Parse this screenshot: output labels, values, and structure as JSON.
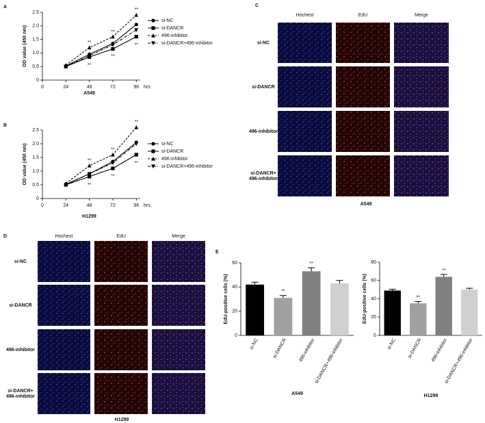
{
  "chart_data": [
    {
      "type": "line",
      "ylabel": "OD value (450 nm)",
      "xlabel": "A549",
      "x_unit": "hrs",
      "x": [
        24,
        48,
        72,
        96
      ],
      "xlim": [
        0,
        100
      ],
      "xticks": [
        0,
        24,
        48,
        72,
        96
      ],
      "ylim": [
        0,
        2.5
      ],
      "yticks": [
        0,
        0.5,
        {
          "value": 1,
          "label": "1.0"
        },
        1.5,
        {
          "value": 2,
          "label": "2.0"
        },
        2.5
      ],
      "series": [
        {
          "name": "si-NC",
          "color": "#000000",
          "marker": "circle",
          "dash": "solid",
          "values": [
            0.52,
            0.95,
            1.35,
            2.05
          ]
        },
        {
          "name": "si-DANCR",
          "color": "#000000",
          "marker": "square",
          "dash": "solid",
          "values": [
            0.5,
            0.85,
            1.15,
            1.6
          ]
        },
        {
          "name": "496-inhibitor",
          "color": "#000000",
          "marker": "triangle-up",
          "dash": "dashed",
          "values": [
            0.55,
            1.2,
            1.6,
            2.4
          ]
        },
        {
          "name": "si-DANCR+496-inhibitor",
          "color": "#000000",
          "marker": "triangle-down",
          "dash": "dashdot",
          "values": [
            0.5,
            0.9,
            1.3,
            1.85
          ]
        }
      ],
      "annotations": [
        {
          "text": "**",
          "x": 48,
          "y": 1.38
        },
        {
          "text": "**",
          "x": 48,
          "y": 0.55
        },
        {
          "text": "**",
          "x": 72,
          "y": 1.78
        },
        {
          "text": "**",
          "x": 72,
          "y": 0.88
        },
        {
          "text": "**",
          "x": 96,
          "y": 2.6
        },
        {
          "text": "**",
          "x": 96,
          "y": 1.3
        }
      ]
    },
    {
      "type": "line",
      "ylabel": "OD value (450 nm)",
      "xlabel": "H1299",
      "x_unit": "hrs",
      "x": [
        24,
        48,
        72,
        96
      ],
      "xlim": [
        0,
        100
      ],
      "xticks": [
        0,
        24,
        48,
        72,
        96
      ],
      "ylim": [
        0,
        2.5
      ],
      "yticks": [
        0,
        0.5,
        {
          "value": 1,
          "label": "1.0"
        },
        1.5,
        {
          "value": 2,
          "label": "2.0"
        },
        2.5
      ],
      "series": [
        {
          "name": "si-NC",
          "color": "#000000",
          "marker": "circle",
          "dash": "solid",
          "values": [
            0.52,
            0.9,
            1.35,
            2.05
          ]
        },
        {
          "name": "si-DANCR",
          "color": "#000000",
          "marker": "square",
          "dash": "solid",
          "values": [
            0.5,
            0.8,
            1.1,
            1.6
          ]
        },
        {
          "name": "496-inhibitor",
          "color": "#000000",
          "marker": "triangle-up",
          "dash": "dashed",
          "values": [
            0.55,
            1.2,
            1.6,
            2.6
          ]
        },
        {
          "name": "si-DANCR+496-inhibitor",
          "color": "#000000",
          "marker": "triangle-down",
          "dash": "dashdot",
          "values": [
            0.5,
            0.9,
            1.3,
            2.0
          ]
        }
      ],
      "annotations": [
        {
          "text": "**",
          "x": 48,
          "y": 1.38
        },
        {
          "text": "**",
          "x": 48,
          "y": 0.5
        },
        {
          "text": "**",
          "x": 72,
          "y": 1.78
        },
        {
          "text": "**",
          "x": 72,
          "y": 0.82
        },
        {
          "text": "**",
          "x": 96,
          "y": 2.8
        },
        {
          "text": "**",
          "x": 96,
          "y": 1.3
        }
      ]
    },
    {
      "type": "bar",
      "ylabel": "EdU-positive cells (%)",
      "xlabel": "A549",
      "categories": [
        "si-NC",
        "si-DANCR",
        "496-inhibitor",
        "si-DANCR+496-inhibitor"
      ],
      "values": [
        42,
        31,
        53,
        43
      ],
      "errors": [
        2,
        2,
        3,
        2.5
      ],
      "colors": [
        "#000000",
        "#a0a0a0",
        "#808080",
        "#d0d0d0"
      ],
      "ylim": [
        0,
        60
      ],
      "yticks": [
        0,
        20,
        40,
        60
      ],
      "annotations": [
        {
          "text": "**",
          "category": "si-DANCR"
        },
        {
          "text": "**",
          "category": "496-inhibitor"
        }
      ]
    },
    {
      "type": "bar",
      "ylabel": "EdU-positive cells (%)",
      "xlabel": "H1299",
      "categories": [
        "si-NC",
        "si-DANCR",
        "496-inhibitor",
        "si-DANCR+496-inhibitor"
      ],
      "values": [
        49,
        35,
        64,
        50
      ],
      "errors": [
        1.5,
        2,
        2.5,
        1.5
      ],
      "colors": [
        "#000000",
        "#a0a0a0",
        "#808080",
        "#d0d0d0"
      ],
      "ylim": [
        0,
        80
      ],
      "yticks": [
        0,
        20,
        40,
        60,
        80
      ],
      "annotations": [
        {
          "text": "**",
          "category": "si-DANCR"
        },
        {
          "text": "**",
          "category": "496-inhibitor"
        }
      ]
    }
  ],
  "figure": {
    "letters": [
      "A",
      "B",
      "C",
      "D",
      "E"
    ],
    "image_panels": [
      {
        "columns": [
          "Hochest",
          "EdU",
          "Merge"
        ],
        "rows": [
          [
            "si-NC"
          ],
          [
            "si-DANCR"
          ],
          [
            "496-inhibitor"
          ],
          [
            "si-DANCR+",
            "496-inhibitor"
          ]
        ],
        "caption": "A549"
      },
      {
        "columns": [
          "Hochest",
          "EdU",
          "Merge"
        ],
        "rows": [
          [
            "si-NC"
          ],
          [
            "si-DANCR"
          ],
          [
            "496-inhibitor"
          ],
          [
            "si-DANCR+",
            "496-inhibitor"
          ]
        ],
        "caption": "H1299"
      }
    ]
  }
}
